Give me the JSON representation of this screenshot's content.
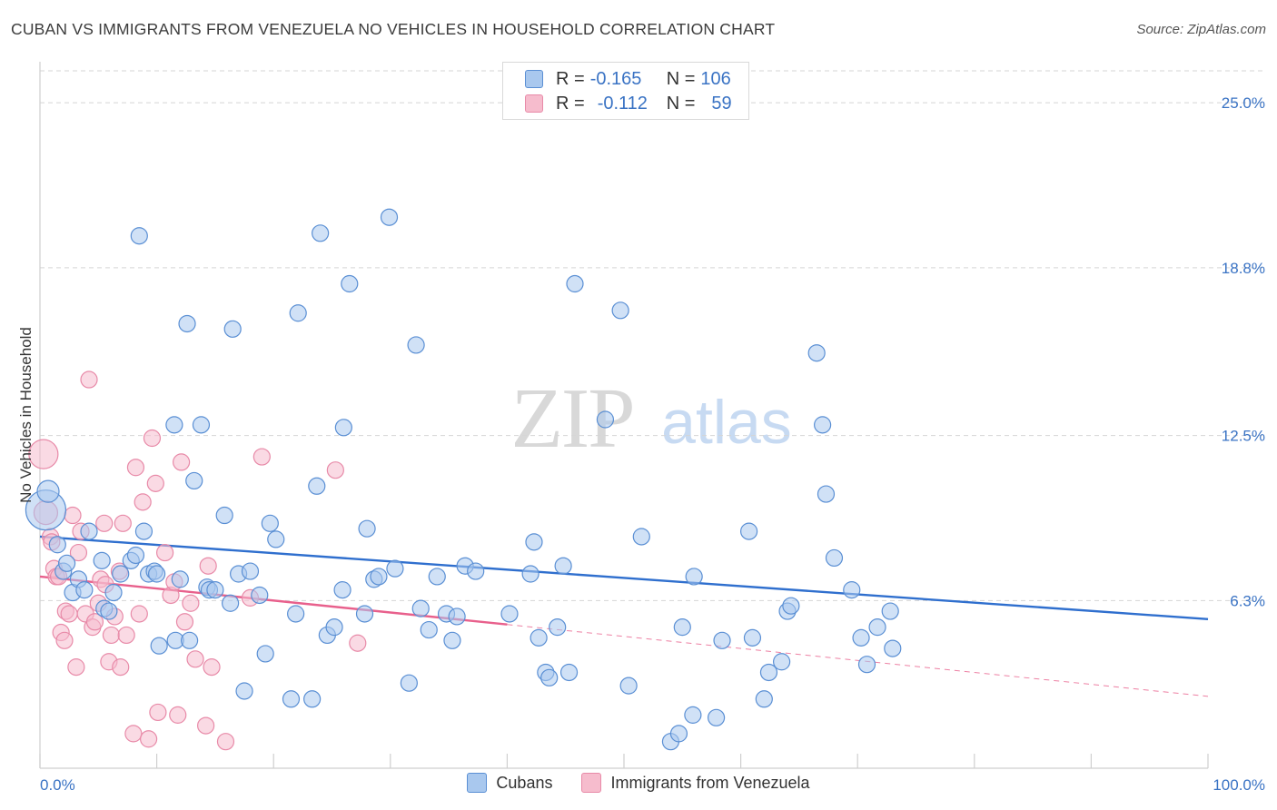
{
  "title": "CUBAN VS IMMIGRANTS FROM VENEZUELA NO VEHICLES IN HOUSEHOLD CORRELATION CHART",
  "source": "Source: ZipAtlas.com",
  "watermark": {
    "zip": "ZIP",
    "atlas": "atlas"
  },
  "legend": {
    "rows": [
      {
        "r_label": "R =",
        "r_value": "-0.165",
        "n_label": "N =",
        "n_value": "106"
      },
      {
        "r_label": "R =",
        "r_value": "-0.112",
        "n_label": "N =",
        "n_value": "59"
      }
    ]
  },
  "colors": {
    "cubans_fill": "#a9c8ee",
    "cubans_stroke": "#5a8fd4",
    "cubans_line": "#2f6fce",
    "venezuela_fill": "#f6bccd",
    "venezuela_stroke": "#e88aa8",
    "venezuela_line": "#e8608c",
    "axis_label": "#3a73c4",
    "grid": "#d5d5d5"
  },
  "chart_data": {
    "type": "scatter",
    "title": "CUBAN VS IMMIGRANTS FROM VENEZUELA NO VEHICLES IN HOUSEHOLD CORRELATION CHART",
    "xlabel": "",
    "ylabel": "No Vehicles in Household",
    "xlim": [
      0,
      100
    ],
    "ylim": [
      0,
      26.2
    ],
    "x_tick_labels": [
      "0.0%",
      "100.0%"
    ],
    "y_ticks": [
      6.3,
      12.5,
      18.8,
      25.0
    ],
    "y_tick_labels": [
      "6.3%",
      "12.5%",
      "18.8%",
      "25.0%"
    ],
    "grid": true,
    "legend_position": "bottom",
    "series": [
      {
        "name": "Cubans",
        "trend": {
          "x": [
            0,
            100
          ],
          "y": [
            8.7,
            5.6
          ],
          "dashed_from": null
        },
        "points": [
          [
            0.5,
            9.7,
            22
          ],
          [
            0.7,
            10.4,
            12
          ],
          [
            1.5,
            8.4,
            9
          ],
          [
            2.0,
            7.4,
            9
          ],
          [
            2.3,
            7.7,
            9
          ],
          [
            2.8,
            6.6,
            9
          ],
          [
            3.3,
            7.1,
            9
          ],
          [
            3.8,
            6.7,
            9
          ],
          [
            4.2,
            8.9,
            9
          ],
          [
            5.3,
            7.8,
            9
          ],
          [
            5.5,
            6.0,
            9
          ],
          [
            5.9,
            5.9,
            9
          ],
          [
            6.3,
            6.6,
            9
          ],
          [
            6.9,
            7.3,
            9
          ],
          [
            7.8,
            7.8,
            9
          ],
          [
            8.2,
            8.0,
            9
          ],
          [
            8.5,
            20.0,
            9
          ],
          [
            8.9,
            8.9,
            9
          ],
          [
            9.3,
            7.3,
            9
          ],
          [
            9.8,
            7.4,
            9
          ],
          [
            10.0,
            7.3,
            9
          ],
          [
            10.2,
            4.6,
            9
          ],
          [
            11.5,
            12.9,
            9
          ],
          [
            11.6,
            4.8,
            9
          ],
          [
            12.0,
            7.1,
            9
          ],
          [
            12.6,
            16.7,
            9
          ],
          [
            12.8,
            4.8,
            9
          ],
          [
            13.2,
            10.8,
            9
          ],
          [
            13.8,
            12.9,
            9
          ],
          [
            14.3,
            6.8,
            9
          ],
          [
            14.5,
            6.7,
            9
          ],
          [
            15.0,
            6.7,
            9
          ],
          [
            15.8,
            9.5,
            9
          ],
          [
            16.3,
            6.2,
            9
          ],
          [
            16.5,
            16.5,
            9
          ],
          [
            17.0,
            7.3,
            9
          ],
          [
            17.5,
            2.9,
            9
          ],
          [
            18.0,
            7.4,
            9
          ],
          [
            18.8,
            6.5,
            9
          ],
          [
            19.3,
            4.3,
            9
          ],
          [
            19.7,
            9.2,
            9
          ],
          [
            20.2,
            8.6,
            9
          ],
          [
            21.5,
            2.6,
            9
          ],
          [
            21.9,
            5.8,
            9
          ],
          [
            22.1,
            17.1,
            9
          ],
          [
            23.3,
            2.6,
            9
          ],
          [
            23.7,
            10.6,
            9
          ],
          [
            24.0,
            20.1,
            9
          ],
          [
            24.6,
            5.0,
            9
          ],
          [
            25.2,
            5.3,
            9
          ],
          [
            25.9,
            6.7,
            9
          ],
          [
            26.0,
            12.8,
            9
          ],
          [
            26.5,
            18.2,
            9
          ],
          [
            27.8,
            5.8,
            9
          ],
          [
            28.0,
            9.0,
            9
          ],
          [
            28.6,
            7.1,
            9
          ],
          [
            29.0,
            7.2,
            9
          ],
          [
            29.9,
            20.7,
            9
          ],
          [
            30.4,
            7.5,
            9
          ],
          [
            31.6,
            3.2,
            9
          ],
          [
            32.2,
            15.9,
            9
          ],
          [
            32.6,
            6.0,
            9
          ],
          [
            33.3,
            5.2,
            9
          ],
          [
            34.0,
            7.2,
            9
          ],
          [
            34.8,
            5.8,
            9
          ],
          [
            35.3,
            4.8,
            9
          ],
          [
            35.7,
            5.7,
            9
          ],
          [
            36.4,
            7.6,
            9
          ],
          [
            37.3,
            7.4,
            9
          ],
          [
            40.2,
            5.8,
            9
          ],
          [
            42.0,
            7.3,
            9
          ],
          [
            42.3,
            8.5,
            9
          ],
          [
            42.7,
            4.9,
            9
          ],
          [
            43.3,
            3.6,
            9
          ],
          [
            43.6,
            3.4,
            9
          ],
          [
            44.3,
            5.3,
            9
          ],
          [
            44.8,
            7.6,
            9
          ],
          [
            45.3,
            3.6,
            9
          ],
          [
            45.8,
            18.2,
            9
          ],
          [
            48.4,
            13.1,
            9
          ],
          [
            49.7,
            17.2,
            9
          ],
          [
            50.4,
            3.1,
            9
          ],
          [
            51.5,
            8.7,
            9
          ],
          [
            54.0,
            1.0,
            9
          ],
          [
            54.7,
            1.3,
            9
          ],
          [
            55.0,
            5.3,
            9
          ],
          [
            55.9,
            2.0,
            9
          ],
          [
            56.0,
            7.2,
            9
          ],
          [
            57.9,
            1.9,
            9
          ],
          [
            58.4,
            4.8,
            9
          ],
          [
            60.7,
            8.9,
            9
          ],
          [
            61.0,
            4.9,
            9
          ],
          [
            62.0,
            2.6,
            9
          ],
          [
            62.4,
            3.6,
            9
          ],
          [
            63.5,
            4.0,
            9
          ],
          [
            64.0,
            5.9,
            9
          ],
          [
            64.3,
            6.1,
            9
          ],
          [
            66.5,
            15.6,
            9
          ],
          [
            67.0,
            12.9,
            9
          ],
          [
            67.3,
            10.3,
            9
          ],
          [
            68.0,
            7.9,
            9
          ],
          [
            69.5,
            6.7,
            9
          ],
          [
            70.3,
            4.9,
            9
          ],
          [
            70.8,
            3.9,
            9
          ],
          [
            71.7,
            5.3,
            9
          ],
          [
            72.8,
            5.9,
            9
          ],
          [
            73.0,
            4.5,
            9
          ]
        ]
      },
      {
        "name": "Immigrants from Venezuela",
        "trend": {
          "x": [
            0,
            40,
            100
          ],
          "y": [
            7.2,
            5.4,
            2.7
          ],
          "dashed_from": 40
        },
        "points": [
          [
            0.3,
            11.8,
            16
          ],
          [
            0.5,
            9.6,
            13
          ],
          [
            0.9,
            8.7,
            9
          ],
          [
            1.0,
            8.5,
            9
          ],
          [
            1.2,
            7.5,
            9
          ],
          [
            1.4,
            7.2,
            9
          ],
          [
            1.6,
            7.2,
            9
          ],
          [
            1.8,
            5.1,
            9
          ],
          [
            2.1,
            4.8,
            9
          ],
          [
            2.2,
            5.9,
            9
          ],
          [
            2.5,
            5.8,
            9
          ],
          [
            2.8,
            9.5,
            9
          ],
          [
            3.1,
            3.8,
            9
          ],
          [
            3.3,
            8.1,
            9
          ],
          [
            3.5,
            8.9,
            9
          ],
          [
            3.9,
            5.8,
            9
          ],
          [
            4.2,
            14.6,
            9
          ],
          [
            4.5,
            5.3,
            9
          ],
          [
            4.7,
            5.5,
            9
          ],
          [
            5.0,
            6.2,
            9
          ],
          [
            5.2,
            7.1,
            9
          ],
          [
            5.5,
            9.2,
            9
          ],
          [
            5.6,
            6.9,
            9
          ],
          [
            5.9,
            4.0,
            9
          ],
          [
            6.1,
            5.0,
            9
          ],
          [
            6.4,
            5.7,
            9
          ],
          [
            6.8,
            7.4,
            9
          ],
          [
            6.9,
            3.8,
            9
          ],
          [
            7.1,
            9.2,
            9
          ],
          [
            7.4,
            5.0,
            9
          ],
          [
            8.0,
            1.3,
            9
          ],
          [
            8.2,
            11.3,
            9
          ],
          [
            8.5,
            5.8,
            9
          ],
          [
            8.8,
            10.0,
            9
          ],
          [
            9.3,
            1.1,
            9
          ],
          [
            9.6,
            12.4,
            9
          ],
          [
            9.9,
            10.7,
            9
          ],
          [
            10.1,
            2.1,
            9
          ],
          [
            10.7,
            8.1,
            9
          ],
          [
            11.2,
            6.5,
            9
          ],
          [
            11.5,
            7.0,
            9
          ],
          [
            11.8,
            2.0,
            9
          ],
          [
            12.1,
            11.5,
            9
          ],
          [
            12.4,
            5.5,
            9
          ],
          [
            12.9,
            6.2,
            9
          ],
          [
            13.3,
            4.1,
            9
          ],
          [
            14.2,
            1.6,
            9
          ],
          [
            14.4,
            7.6,
            9
          ],
          [
            14.7,
            3.8,
            9
          ],
          [
            15.9,
            1.0,
            9
          ],
          [
            18.0,
            6.4,
            9
          ],
          [
            19.0,
            11.7,
            9
          ],
          [
            25.3,
            11.2,
            9
          ],
          [
            27.2,
            4.7,
            9
          ]
        ]
      }
    ]
  },
  "bottom_legend": [
    {
      "label": "Cubans"
    },
    {
      "label": "Immigrants from Venezuela"
    }
  ]
}
